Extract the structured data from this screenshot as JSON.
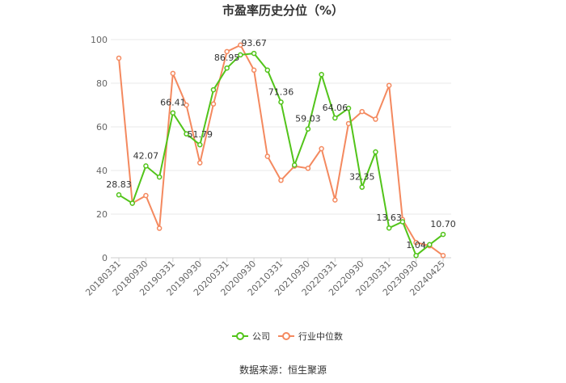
{
  "chart_data": {
    "type": "line",
    "title": "市盈率历史分位（%）",
    "source": "数据来源：恒生聚源",
    "ylim": [
      0,
      100
    ],
    "yticks": [
      0,
      20,
      40,
      60,
      80,
      100
    ],
    "grid": true,
    "legend_position": "bottom",
    "x_tick_labels": [
      "20180331",
      "20180930",
      "20190331",
      "20190930",
      "20200331",
      "20200930",
      "20210331",
      "20210930",
      "20220331",
      "20220930",
      "20230331",
      "20230930",
      "20240425"
    ],
    "colors": {
      "company": "#52c41a",
      "industry": "#f4895f"
    },
    "series": [
      {
        "name": "公司",
        "values": [
          28.83,
          25.0,
          42.07,
          37.0,
          66.41,
          56.8,
          51.79,
          77.0,
          86.95,
          93.0,
          93.67,
          86.0,
          71.36,
          42.5,
          59.03,
          84.0,
          64.06,
          68.5,
          32.35,
          48.5,
          13.63,
          16.5,
          1.04,
          6.0,
          10.7
        ],
        "labels": {
          "0": "28.83",
          "2": "42.07",
          "4": "66.41",
          "6": "51.79",
          "8": "86.95",
          "10": "93.67",
          "12": "71.36",
          "14": "59.03",
          "16": "64.06",
          "18": "32.35",
          "20": "13.63",
          "22": "1.04",
          "24": "10.70"
        }
      },
      {
        "name": "行业中位数",
        "values": [
          91.5,
          25.0,
          28.5,
          13.5,
          84.5,
          70.0,
          43.5,
          70.5,
          94.5,
          97.5,
          86.0,
          46.5,
          35.5,
          42.0,
          41.0,
          50.0,
          26.5,
          61.5,
          67.0,
          63.5,
          79.0,
          17.5,
          7.0,
          5.5,
          1.0
        ]
      }
    ]
  }
}
